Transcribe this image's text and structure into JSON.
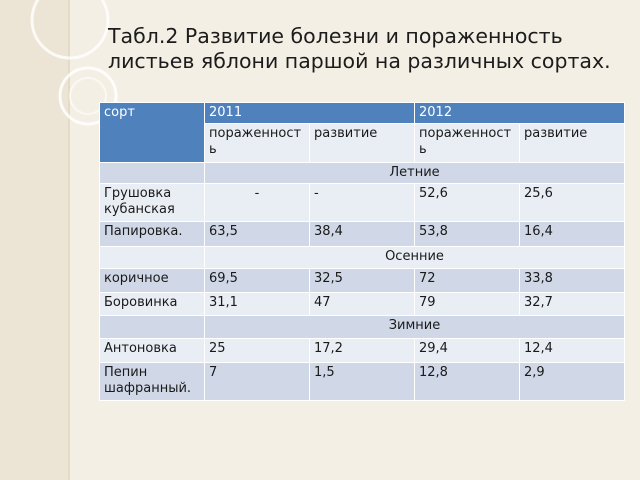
{
  "title": "Табл.2 Развитие болезни и пораженность листьев яблони паршой на различных сортах.",
  "table": {
    "header_variety": "сорт",
    "year1": "2011",
    "year2": "2012",
    "col_damage": "пораженность",
    "col_development": "развитие",
    "groups": [
      "Летние",
      "Осенние",
      "Зимние"
    ],
    "rows": [
      {
        "name": "Грушовка кубанская",
        "d2011": "-",
        "r2011": " -",
        "d2012": "52,6",
        "r2012": "25,6"
      },
      {
        "name": "Папировка.",
        "d2011": "63,5",
        "r2011": "38,4",
        "d2012": "53,8",
        "r2012": "16,4"
      },
      {
        "name": "коричное",
        "d2011": "69,5",
        "r2011": "32,5",
        "d2012": "72",
        "r2012": "33,8"
      },
      {
        "name": "Боровинка",
        "d2011": "31,1",
        "r2011": "47",
        "d2012": "79",
        "r2012": "32,7"
      },
      {
        "name": "Антоновка",
        "d2011": "25",
        "r2011": "17,2",
        "d2012": "29,4",
        "r2012": "12,4"
      },
      {
        "name": "Пепин шафранный.",
        "d2011": "7",
        "r2011": "1,5",
        "d2012": "12,8",
        "r2012": "2,9"
      }
    ]
  }
}
